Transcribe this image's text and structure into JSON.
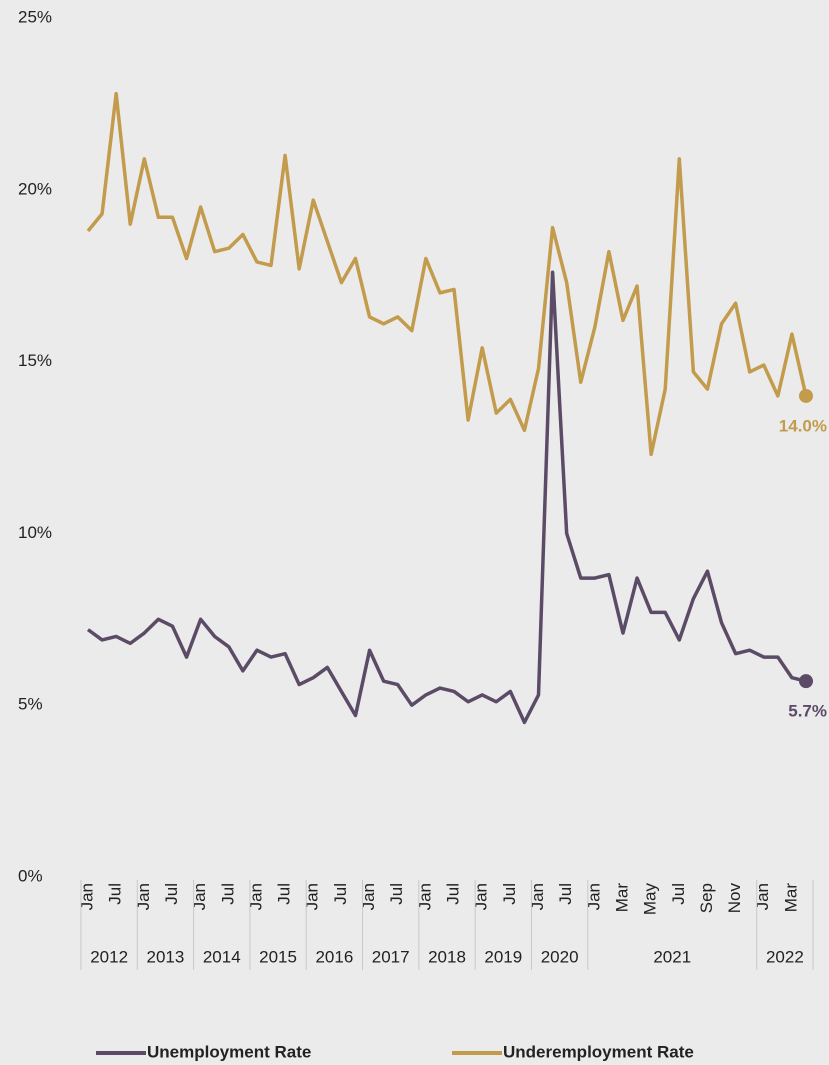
{
  "chart_data": {
    "type": "line",
    "categories": [
      "Jan",
      null,
      "Jul",
      null,
      "Jan",
      null,
      "Jul",
      null,
      "Jan",
      null,
      "Jul",
      null,
      "Jan",
      null,
      "Jul",
      null,
      "Jan",
      null,
      "Jul",
      null,
      "Jan",
      null,
      "Jul",
      null,
      "Jan",
      null,
      "Jul",
      null,
      "Jan",
      null,
      "Jul",
      null,
      "Jan",
      null,
      "Jul",
      null,
      "Jan",
      null,
      "Mar",
      null,
      "May",
      null,
      "Jul",
      null,
      "Sep",
      null,
      "Nov",
      null,
      "Jan",
      null,
      "Mar",
      null
    ],
    "category_groups": [
      {
        "label": "2012",
        "size": 4
      },
      {
        "label": "2013",
        "size": 4
      },
      {
        "label": "2014",
        "size": 4
      },
      {
        "label": "2015",
        "size": 4
      },
      {
        "label": "2016",
        "size": 4
      },
      {
        "label": "2017",
        "size": 4
      },
      {
        "label": "2018",
        "size": 4
      },
      {
        "label": "2019",
        "size": 4
      },
      {
        "label": "2020",
        "size": 4
      },
      {
        "label": "2021",
        "size": 12
      },
      {
        "label": "2022",
        "size": 4
      }
    ],
    "series": [
      {
        "name": "Unemployment Rate",
        "color": "#5b4b66",
        "values": [
          7.2,
          6.9,
          7.0,
          6.8,
          7.1,
          7.5,
          7.3,
          6.4,
          7.5,
          7.0,
          6.7,
          6.0,
          6.6,
          6.4,
          6.5,
          5.6,
          5.8,
          6.1,
          5.4,
          4.7,
          6.6,
          5.7,
          5.6,
          5.0,
          5.3,
          5.5,
          5.4,
          5.1,
          5.3,
          5.1,
          5.4,
          4.5,
          5.3,
          17.6,
          10.0,
          8.7,
          8.7,
          8.8,
          7.1,
          8.7,
          7.7,
          7.7,
          6.9,
          8.1,
          8.9,
          7.4,
          6.5,
          6.6,
          6.4,
          6.4,
          5.8,
          5.7
        ],
        "value_labels": [
          null,
          null,
          null,
          null,
          null,
          null,
          null,
          null,
          null,
          null,
          null,
          null,
          null,
          null,
          null,
          null,
          null,
          null,
          null,
          null,
          null,
          null,
          null,
          null,
          null,
          null,
          null,
          null,
          null,
          null,
          null,
          null,
          null,
          null,
          null,
          null,
          null,
          null,
          null,
          null,
          null,
          null,
          null,
          null,
          null,
          null,
          null,
          null,
          null,
          null,
          null,
          "5.7%"
        ]
      },
      {
        "name": "Underemployment Rate",
        "color": "#c29b4c",
        "values": [
          18.8,
          19.3,
          22.8,
          19.0,
          20.9,
          19.2,
          19.2,
          18.0,
          19.5,
          18.2,
          18.3,
          18.7,
          17.9,
          17.8,
          21.0,
          17.7,
          19.7,
          18.5,
          17.3,
          18.0,
          16.3,
          16.1,
          16.3,
          15.9,
          18.0,
          17.0,
          17.1,
          13.3,
          15.4,
          13.5,
          13.9,
          13.0,
          14.8,
          18.9,
          17.3,
          14.4,
          16.0,
          18.2,
          16.2,
          17.2,
          12.3,
          14.2,
          20.9,
          14.7,
          14.2,
          16.1,
          16.7,
          14.7,
          14.9,
          14.0,
          15.8,
          14.0
        ],
        "value_labels": [
          null,
          null,
          null,
          null,
          null,
          null,
          null,
          null,
          null,
          null,
          null,
          null,
          null,
          null,
          null,
          null,
          null,
          null,
          null,
          null,
          null,
          null,
          null,
          null,
          null,
          null,
          null,
          null,
          null,
          null,
          null,
          null,
          null,
          null,
          null,
          null,
          null,
          null,
          null,
          null,
          null,
          null,
          null,
          null,
          null,
          null,
          null,
          null,
          null,
          null,
          null,
          "14.0%"
        ]
      }
    ],
    "ylim": [
      0,
      25
    ],
    "yticks": [
      {
        "value": 0,
        "label": "0%"
      },
      {
        "value": 5,
        "label": "5%"
      },
      {
        "value": 10,
        "label": "10%"
      },
      {
        "value": 15,
        "label": "15%"
      },
      {
        "value": 20,
        "label": "20%"
      },
      {
        "value": 25,
        "label": "25%"
      }
    ],
    "grid": false,
    "legend": "bottom"
  }
}
